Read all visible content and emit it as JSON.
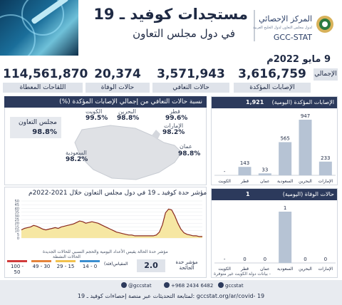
{
  "header": {
    "title": "مستجدات كوفيد ـ 19",
    "subtitle": "في دول مجلس التعاون",
    "logo_ar": "المركز الإحصائي",
    "logo_sub": "لدول مجلس التعاون لدول الخليج العربية",
    "logo_en": "GCC-STAT"
  },
  "date": "9 مايو 2022م",
  "totals_tag": "الإجمالي",
  "stats": [
    {
      "value": "3,616,759",
      "label": "الإصابات المؤكدة"
    },
    {
      "value": "3,571,943",
      "label": "حالات التعافي"
    },
    {
      "value": "20,374",
      "label": "حالات الوفاة"
    },
    {
      "value": "114,561,870",
      "label": "اللقاحات المعطاة"
    }
  ],
  "recovery": {
    "header": "نسبة حالات التعافي من إجمالي الإصابات المؤكدة (%)",
    "gcc_label": "مجلس التعاون",
    "gcc_value": "98.8%",
    "countries": [
      {
        "name": "الكويت",
        "value": "99.5%"
      },
      {
        "name": "البحرين",
        "value": "98.8%"
      },
      {
        "name": "قطر",
        "value": "99.6%"
      },
      {
        "name": "الإمارات",
        "value": "98.2%"
      },
      {
        "name": "عمان",
        "value": "98.8%"
      },
      {
        "name": "السعودية",
        "value": "98.2%"
      }
    ]
  },
  "index": {
    "title": "مؤشر حدة كوفيد ـ 19 في دول مجلس التعاون خلال 2021-2022م",
    "note1": "مؤشر حدة الحالة يقيس الأعداد اليومية والحجم النسبي للحالات الجديدة",
    "note2": "الحالات النشطة",
    "value": "2.0",
    "value_label": "مؤشر حدة الجائحة",
    "scale_label": "المقياس(فئة)",
    "scale": [
      {
        "label": "14 - 0",
        "color": "#3b8ed0"
      },
      {
        "label": "29 - 15",
        "color": "#f2c14e"
      },
      {
        "label": "49 - 30",
        "color": "#e5833a"
      },
      {
        "label": "100 - 50",
        "color": "#d13b3b"
      }
    ]
  },
  "chart_data": [
    {
      "type": "line",
      "title": "مؤشر حدة كوفيد ـ 19 في دول مجلس التعاون خلال 2021-2022م",
      "ylim": [
        0,
        50
      ],
      "yticks": [
        0,
        5,
        10,
        15,
        20,
        25,
        30,
        35,
        40,
        45,
        50
      ],
      "series": [
        {
          "values": [
            11,
            13,
            14,
            15,
            17,
            16,
            14,
            12,
            11,
            12,
            13,
            14,
            13,
            15,
            16,
            17,
            18,
            19,
            21,
            23,
            22,
            20,
            21,
            22,
            21,
            20,
            18,
            16,
            14,
            12,
            10,
            8,
            7,
            6,
            5,
            4,
            4,
            3,
            3,
            3,
            3,
            3,
            3,
            3,
            4,
            8,
            18,
            34,
            39,
            38,
            30,
            20,
            12,
            7,
            5,
            4,
            3,
            3,
            2,
            2
          ]
        }
      ]
    },
    {
      "type": "bar",
      "title": "الإصابات المؤكدة (اليومية)",
      "categories": [
        "الكويت",
        "قطر",
        "عمان",
        "السعودية",
        "البحرين",
        "الإمارات"
      ],
      "values": [
        null,
        143,
        33,
        565,
        947,
        233
      ],
      "labels": [
        "-",
        "143",
        "33",
        "565",
        "947",
        "233"
      ]
    },
    {
      "type": "bar",
      "title": "حالات الوفاة (اليومية)",
      "categories": [
        "الكويت",
        "قطر",
        "عمان",
        "السعودية",
        "البحرين",
        "الإمارات"
      ],
      "values": [
        null,
        0,
        0,
        1,
        0,
        0
      ],
      "labels": [
        "-",
        "0",
        "0",
        "1",
        "0",
        "0"
      ]
    }
  ],
  "cases_panel": {
    "label": "الإصابات المؤكدة (اليومية)",
    "total": "1,921"
  },
  "deaths_panel": {
    "label": "حالات الوفاة (اليومية)",
    "total": "1"
  },
  "kuwait_note": "- بيانات دولة الكويت غير متوفرة",
  "footer": {
    "links": [
      "@gccstat",
      "+968 2434 6482",
      "gccstat"
    ],
    "line2": "لمتابعة التحديثات عبر منصة إحصاءات كوفيد ـ 19: gccstat.org/ar/covid- 19"
  },
  "colors": {
    "navy": "#2c3a5c",
    "bar": "#b6c3d4",
    "line": "#8a2a1f",
    "area": "#f6e7a3"
  }
}
